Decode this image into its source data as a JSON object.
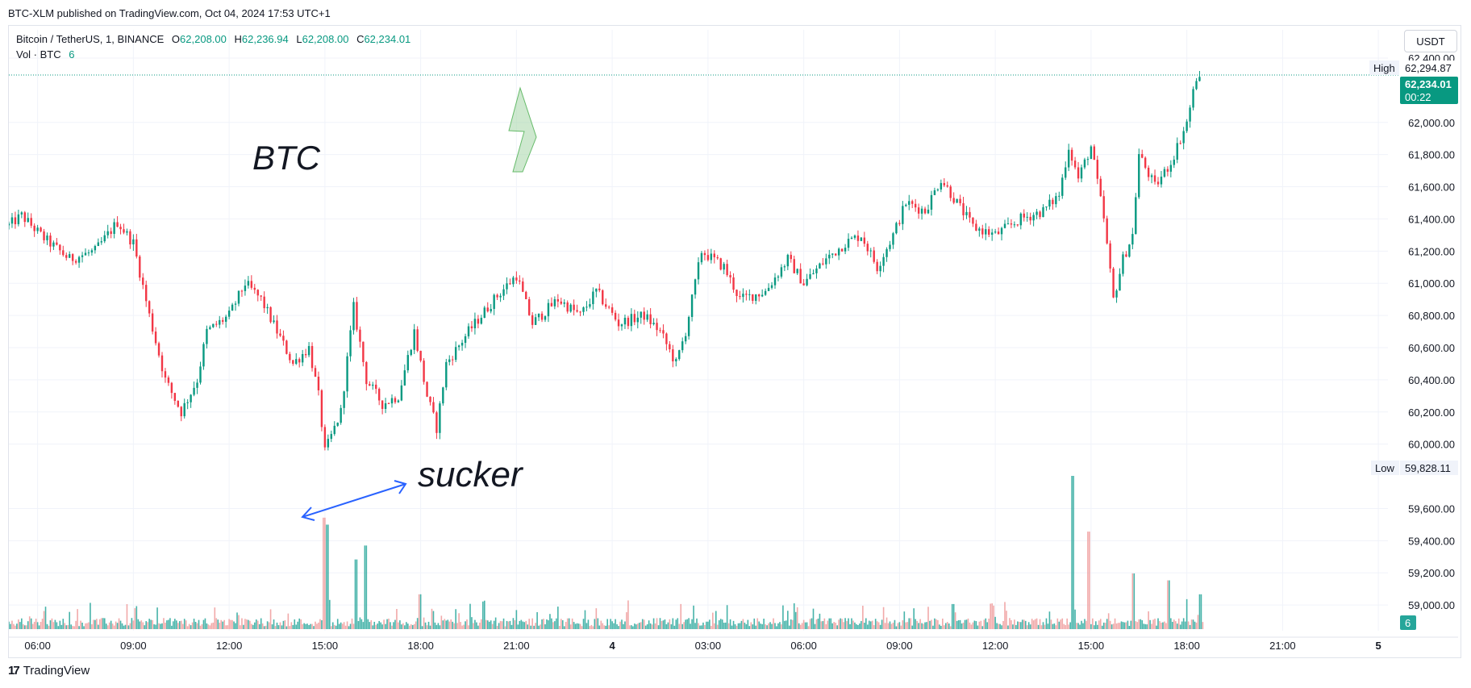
{
  "header": {
    "caption": "BTC-XLM published on TradingView.com, Oct 04, 2024 17:53 UTC+1"
  },
  "legend": {
    "symbol": "Bitcoin / TetherUS, 1, BINANCE",
    "open_label": "O",
    "open": "62,208.00",
    "high_label": "H",
    "high": "62,236.94",
    "low_label": "L",
    "low": "62,208.00",
    "close_label": "C",
    "close": "62,234.01",
    "vol_label": "Vol · BTC",
    "vol_value": "6"
  },
  "toolbar": {
    "currency": "USDT"
  },
  "footer": {
    "brand": "TradingView",
    "logo": "17"
  },
  "colors": {
    "up": "#089981",
    "down": "#f23645",
    "arrow_green": "#a5d6a7",
    "arrow_blue": "#2962ff"
  },
  "chart_data": {
    "type": "candlestick",
    "y_axis": {
      "ticks": [
        "59,000.00",
        "59,200.00",
        "59,400.00",
        "59,600.00",
        "60,000.00",
        "60,200.00",
        "60,400.00",
        "60,600.00",
        "60,800.00",
        "61,000.00",
        "61,200.00",
        "61,400.00",
        "61,600.00",
        "61,800.00",
        "62,000.00",
        "62,400.00"
      ],
      "tick_values": [
        59000,
        59200,
        59400,
        59600,
        60000,
        60200,
        60400,
        60600,
        60800,
        61000,
        61200,
        61400,
        61600,
        61800,
        62000,
        62400
      ],
      "range": [
        58800,
        62450
      ]
    },
    "x_axis": {
      "ticks": [
        "06:00",
        "09:00",
        "12:00",
        "15:00",
        "18:00",
        "21:00",
        "4",
        "03:00",
        "06:00",
        "09:00",
        "12:00",
        "15:00",
        "18:00",
        "21:00",
        "5"
      ],
      "tick_hours": [
        6,
        9,
        12,
        15,
        18,
        21,
        24,
        27,
        30,
        33,
        36,
        39,
        42,
        45,
        48
      ],
      "range": [
        5.1,
        48.3
      ]
    },
    "price_path": [
      [
        5.1,
        61360
      ],
      [
        5.5,
        61420
      ],
      [
        6.2,
        61280
      ],
      [
        7.0,
        61150
      ],
      [
        7.8,
        61200
      ],
      [
        8.5,
        61380
      ],
      [
        9.0,
        61250
      ],
      [
        9.5,
        60800
      ],
      [
        10.0,
        60400
      ],
      [
        10.5,
        60200
      ],
      [
        11.0,
        60400
      ],
      [
        11.3,
        60700
      ],
      [
        12.0,
        60800
      ],
      [
        12.5,
        61000
      ],
      [
        13.0,
        60900
      ],
      [
        13.5,
        60700
      ],
      [
        14.0,
        60500
      ],
      [
        14.5,
        60600
      ],
      [
        14.8,
        60300
      ],
      [
        15.0,
        59950
      ],
      [
        15.5,
        60200
      ],
      [
        15.9,
        60850
      ],
      [
        16.3,
        60400
      ],
      [
        16.8,
        60250
      ],
      [
        17.3,
        60300
      ],
      [
        17.8,
        60700
      ],
      [
        18.2,
        60300
      ],
      [
        18.5,
        60100
      ],
      [
        18.8,
        60500
      ],
      [
        19.5,
        60700
      ],
      [
        20.3,
        60900
      ],
      [
        21.0,
        61050
      ],
      [
        21.5,
        60750
      ],
      [
        22.3,
        60900
      ],
      [
        23.0,
        60800
      ],
      [
        23.5,
        60950
      ],
      [
        24.2,
        60750
      ],
      [
        25.0,
        60800
      ],
      [
        25.5,
        60700
      ],
      [
        26.0,
        60500
      ],
      [
        26.3,
        60700
      ],
      [
        26.8,
        61200
      ],
      [
        27.5,
        61100
      ],
      [
        28.0,
        60900
      ],
      [
        28.8,
        60950
      ],
      [
        29.5,
        61150
      ],
      [
        30.0,
        61000
      ],
      [
        30.7,
        61150
      ],
      [
        31.3,
        61250
      ],
      [
        31.8,
        61300
      ],
      [
        32.3,
        61100
      ],
      [
        32.8,
        61300
      ],
      [
        33.2,
        61500
      ],
      [
        33.8,
        61450
      ],
      [
        34.3,
        61650
      ],
      [
        34.8,
        61500
      ],
      [
        35.3,
        61350
      ],
      [
        36.0,
        61300
      ],
      [
        36.8,
        61400
      ],
      [
        37.5,
        61450
      ],
      [
        38.0,
        61550
      ],
      [
        38.3,
        61850
      ],
      [
        38.6,
        61650
      ],
      [
        39.0,
        61850
      ],
      [
        39.4,
        61400
      ],
      [
        39.7,
        60900
      ],
      [
        40.0,
        61150
      ],
      [
        40.3,
        61300
      ],
      [
        40.5,
        61800
      ],
      [
        41.0,
        61600
      ],
      [
        41.5,
        61750
      ],
      [
        42.0,
        62000
      ],
      [
        42.3,
        62280
      ],
      [
        42.5,
        62234
      ]
    ],
    "volume_max": 110,
    "volume_scale_label": "6",
    "volume_spikes": [
      [
        15.0,
        80
      ],
      [
        15.1,
        75
      ],
      [
        16.0,
        50
      ],
      [
        16.3,
        60
      ],
      [
        18.0,
        25
      ],
      [
        34.7,
        18
      ],
      [
        38.4,
        110
      ],
      [
        38.9,
        70
      ],
      [
        40.3,
        40
      ],
      [
        41.4,
        35
      ],
      [
        42.4,
        25
      ]
    ],
    "high_label": "High",
    "high_value": "62,294.87",
    "low_label": "Low",
    "low_value": "59,828.11",
    "last_price": "62,234.01",
    "countdown": "00:22",
    "annotations": [
      {
        "type": "text",
        "text": "BTC"
      },
      {
        "type": "text",
        "text": "sucker"
      }
    ]
  }
}
